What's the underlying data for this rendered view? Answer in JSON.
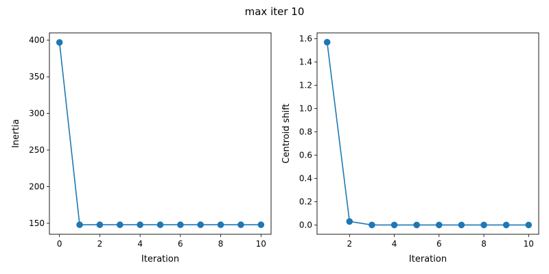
{
  "figure": {
    "suptitle": "max iter 10"
  },
  "chart_data": [
    {
      "type": "line",
      "title": "",
      "xlabel": "Iteration",
      "ylabel": "Inertia",
      "x": [
        0,
        1,
        2,
        3,
        4,
        5,
        6,
        7,
        8,
        9,
        10
      ],
      "series": [
        {
          "values": [
            397,
            148,
            148,
            148,
            148,
            148,
            148,
            148,
            148,
            148,
            148
          ],
          "color": "#1f77b4",
          "marker": "circle"
        }
      ],
      "xlim": [
        -0.5,
        10.5
      ],
      "ylim": [
        135,
        410
      ],
      "xticks": [
        0,
        2,
        4,
        6,
        8,
        10
      ],
      "yticks": [
        150,
        200,
        250,
        300,
        350,
        400
      ],
      "xtick_labels": [
        "0",
        "2",
        "4",
        "6",
        "8",
        "10"
      ],
      "ytick_labels": [
        "150",
        "200",
        "250",
        "300",
        "350",
        "400"
      ],
      "grid": false
    },
    {
      "type": "line",
      "title": "",
      "xlabel": "Iteration",
      "ylabel": "Centroid shift",
      "x": [
        1,
        2,
        3,
        4,
        5,
        6,
        7,
        8,
        9,
        10
      ],
      "series": [
        {
          "values": [
            1.57,
            0.03,
            0.0,
            0.0,
            0.0,
            0.0,
            0.0,
            0.0,
            0.0,
            0.0
          ],
          "color": "#1f77b4",
          "marker": "circle"
        }
      ],
      "xlim": [
        0.55,
        10.45
      ],
      "ylim": [
        -0.08,
        1.65
      ],
      "xticks": [
        2,
        4,
        6,
        8,
        10
      ],
      "yticks": [
        0.0,
        0.2,
        0.4,
        0.6,
        0.8,
        1.0,
        1.2,
        1.4,
        1.6
      ],
      "xtick_labels": [
        "2",
        "4",
        "6",
        "8",
        "10"
      ],
      "ytick_labels": [
        "0.0",
        "0.2",
        "0.4",
        "0.6",
        "0.8",
        "1.0",
        "1.2",
        "1.4",
        "1.6"
      ],
      "grid": false
    }
  ]
}
